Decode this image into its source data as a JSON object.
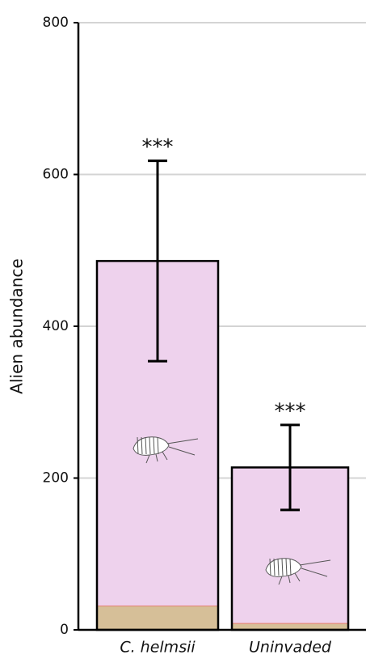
{
  "chart_data": {
    "type": "stacked_bar",
    "y_label": "Alien abundance",
    "categories": [
      "C. helmsii",
      "Uninvaded"
    ],
    "series": [
      {
        "color": "#d6bf98",
        "edge_color": "#e57f72",
        "values": [
          32,
          9
        ]
      },
      {
        "color": "#eed2ed",
        "values": [
          454,
          205
        ]
      }
    ],
    "errors": [
      132,
      56
    ],
    "annotations": [
      "***",
      "***"
    ],
    "ylim": [
      0,
      800
    ],
    "yticks": [
      0,
      200,
      400,
      600,
      800
    ],
    "grid": true
  }
}
